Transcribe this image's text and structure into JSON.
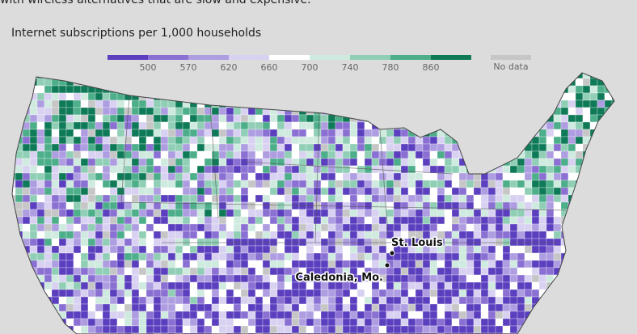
{
  "intro": "with wireless alternatives that are slow and expensive.",
  "subtitle": "Internet subscriptions per 1,000 households",
  "legend": {
    "ticks": [
      500,
      570,
      620,
      660,
      700,
      740,
      780,
      860
    ],
    "colors": [
      "#5b3fbf",
      "#8a70d2",
      "#ae9de1",
      "#d9d1f1",
      "#ffffff",
      "#cfeadf",
      "#90cfb6",
      "#4dae8a",
      "#0f7a58"
    ],
    "no_data": "No data",
    "no_data_color": "#c6c6c6"
  },
  "places": [
    {
      "label": "St. Louis"
    },
    {
      "label": "Caledonia, Mo."
    }
  ]
}
